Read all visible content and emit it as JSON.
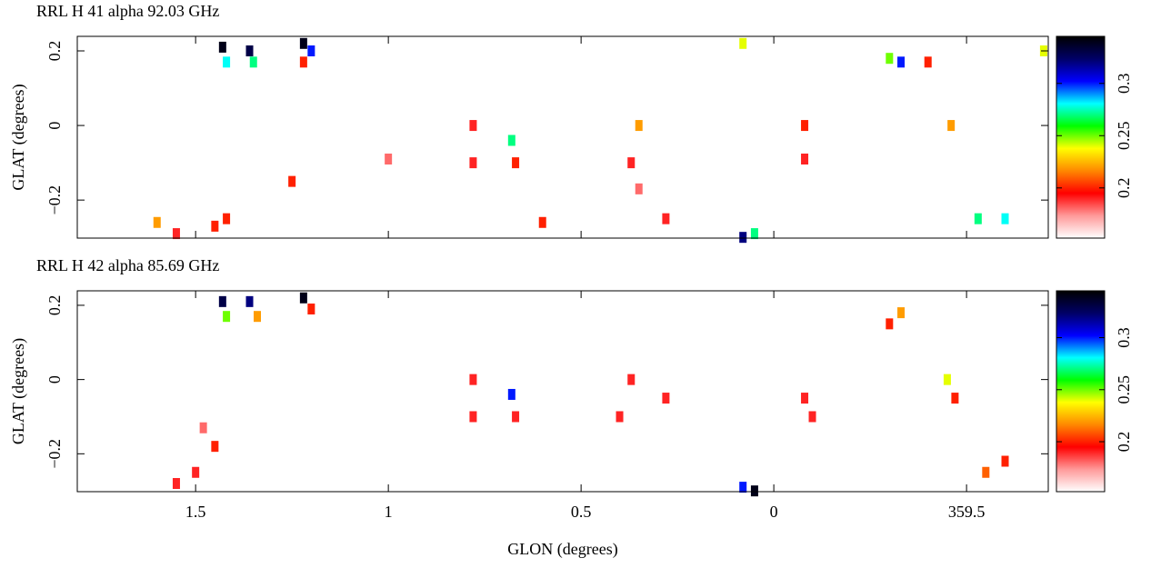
{
  "chart_data": [
    {
      "type": "heatmap",
      "title": "RRL H 41 alpha 92.03 GHz",
      "ylabel": "GLAT (degrees)",
      "xlim": [
        1.807,
        -0.712
      ],
      "xticks": [
        1.5,
        1,
        0.5,
        0,
        {
          "value": -0.5,
          "label": "359.5"
        }
      ],
      "ylim": [
        -0.302,
        0.239
      ],
      "yticks": [
        0.2,
        0,
        {
          "value": -0.2,
          "label": "−0.2"
        }
      ],
      "clim": [
        0.152,
        0.345
      ],
      "cticks": [
        0.2,
        0.25,
        0.3
      ],
      "colormap": [
        "#ffffff",
        "#ff9999",
        "#ff0000",
        "#ff8800",
        "#ffff00",
        "#00ff00",
        "#00ffff",
        "#0000ff",
        "#000066",
        "#000000"
      ],
      "x": [
        1.43,
        1.42,
        1.36,
        1.35,
        1.22,
        1.2,
        1.22,
        1.45,
        1.6,
        1.55,
        1.42,
        1.25,
        0.78,
        0.78,
        0.68,
        0.67,
        1.0,
        0.35,
        0.37,
        0.35,
        0.08,
        0.08,
        0.05,
        -0.08,
        -0.08,
        -0.3,
        -0.33,
        -0.4,
        -0.46,
        -0.53,
        -0.6,
        -0.7,
        0.28,
        0.6
      ],
      "y": [
        0.21,
        0.17,
        0.2,
        0.17,
        0.22,
        0.2,
        0.17,
        -0.27,
        -0.26,
        -0.29,
        -0.25,
        -0.15,
        0,
        -0.1,
        -0.04,
        -0.1,
        -0.09,
        0,
        -0.1,
        -0.17,
        0.22,
        -0.3,
        -0.29,
        0,
        -0.09,
        0.18,
        0.17,
        0.17,
        0,
        -0.25,
        -0.25,
        0.2,
        -0.25,
        -0.26
      ],
      "values": [
        0.34,
        0.28,
        0.33,
        0.27,
        0.34,
        0.3,
        0.2,
        0.2,
        0.22,
        0.19,
        0.2,
        0.2,
        0.19,
        0.19,
        0.27,
        0.2,
        0.18,
        0.22,
        0.19,
        0.18,
        0.24,
        0.32,
        0.27,
        0.2,
        0.19,
        0.25,
        0.3,
        0.2,
        0.22,
        0.27,
        0.28,
        0.24,
        0.19,
        0.2
      ]
    },
    {
      "type": "heatmap",
      "title": "RRL H 42 alpha 85.69 GHz",
      "ylabel": "GLAT (degrees)",
      "xlabel": "GLON (degrees)",
      "xlim": [
        1.807,
        -0.712
      ],
      "xticks": [
        1.5,
        1,
        0.5,
        0,
        {
          "value": -0.5,
          "label": "359.5"
        }
      ],
      "ylim": [
        -0.302,
        0.239
      ],
      "yticks": [
        0.2,
        0,
        {
          "value": -0.2,
          "label": "−0.2"
        }
      ],
      "clim": [
        0.152,
        0.345
      ],
      "cticks": [
        0.2,
        0.25,
        0.3
      ],
      "colormap": [
        "#ffffff",
        "#ff9999",
        "#ff0000",
        "#ff8800",
        "#ffff00",
        "#00ff00",
        "#00ffff",
        "#0000ff",
        "#000066",
        "#000000"
      ],
      "x": [
        1.43,
        1.42,
        1.36,
        1.34,
        1.22,
        1.2,
        1.5,
        1.55,
        1.45,
        0.78,
        0.78,
        0.68,
        0.67,
        0.4,
        0.37,
        0.08,
        0.05,
        -0.08,
        -0.1,
        -0.33,
        -0.3,
        -0.45,
        -0.47,
        -0.55,
        -0.6,
        0.28,
        1.48
      ],
      "y": [
        0.21,
        0.17,
        0.21,
        0.17,
        0.22,
        0.19,
        -0.25,
        -0.28,
        -0.18,
        0,
        -0.1,
        -0.04,
        -0.1,
        -0.1,
        0,
        -0.29,
        -0.3,
        -0.05,
        -0.1,
        0.18,
        0.15,
        0,
        -0.05,
        -0.25,
        -0.22,
        -0.05,
        -0.13
      ],
      "values": [
        0.33,
        0.25,
        0.32,
        0.22,
        0.34,
        0.2,
        0.19,
        0.19,
        0.2,
        0.19,
        0.19,
        0.3,
        0.19,
        0.19,
        0.19,
        0.3,
        0.34,
        0.19,
        0.19,
        0.22,
        0.2,
        0.24,
        0.2,
        0.21,
        0.2,
        0.19,
        0.18
      ]
    }
  ]
}
